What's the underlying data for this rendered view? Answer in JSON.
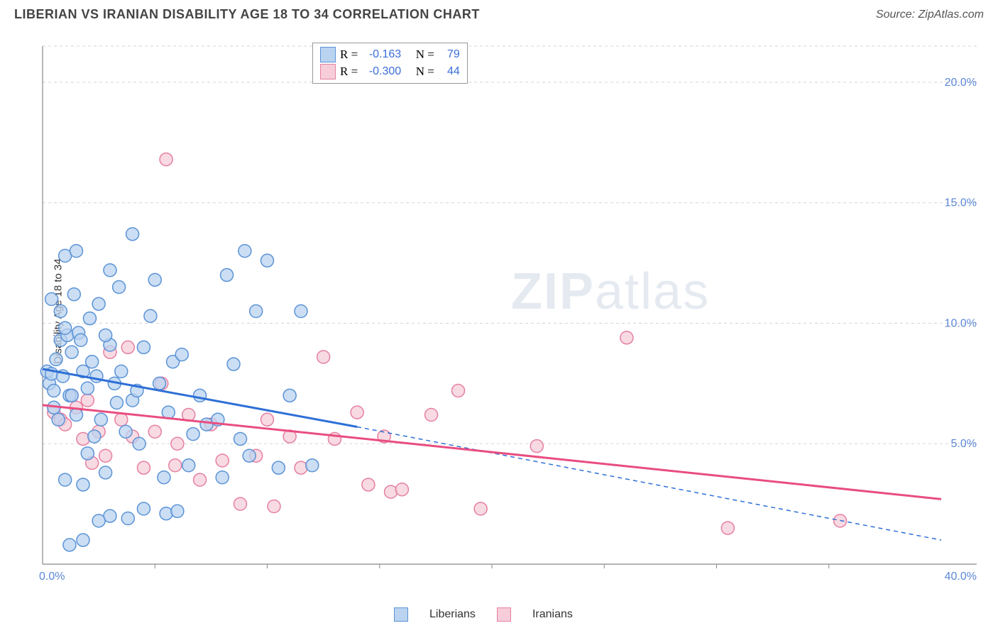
{
  "title": "LIBERIAN VS IRANIAN DISABILITY AGE 18 TO 34 CORRELATION CHART",
  "source": "Source: ZipAtlas.com",
  "ylabel": "Disability Age 18 to 34",
  "watermark_1": "ZIP",
  "watermark_2": "atlas",
  "chart": {
    "type": "scatter",
    "x_min": 0.0,
    "x_max": 40.0,
    "y_min": 0.0,
    "y_max": 21.5,
    "y_ticks": [
      5.0,
      10.0,
      15.0,
      20.0
    ],
    "y_tick_labels": [
      "5.0%",
      "10.0%",
      "15.0%",
      "20.0%"
    ],
    "x_corner_labels": [
      "0.0%",
      "40.0%"
    ],
    "x_minor_ticks": [
      5,
      10,
      15,
      20,
      25,
      30,
      35
    ],
    "grid_color": "#d5d5d5",
    "axis_color": "#888888",
    "tick_label_color": "#5b87d6",
    "tick_label_fontsize": 16,
    "background_color": "#ffffff",
    "marker_radius": 9,
    "marker_stroke_width": 1.5,
    "trend_line_width": 3,
    "trend_dash_width": 1.5,
    "series": [
      {
        "name": "Liberians",
        "fill": "#b9d3f0",
        "stroke": "#5b93d6",
        "line_color": "#2e6fd6",
        "R_label": "R =",
        "R_value": "-0.163",
        "N_label": "N =",
        "N_value": "79",
        "trend": {
          "x1": 0,
          "y1": 8.1,
          "x2": 14,
          "y2": 5.7,
          "dash_x2": 40,
          "dash_y2": 1.0
        },
        "points": [
          [
            0.2,
            8.0
          ],
          [
            0.3,
            7.5
          ],
          [
            0.4,
            7.9
          ],
          [
            0.5,
            7.2
          ],
          [
            0.6,
            8.5
          ],
          [
            0.5,
            6.5
          ],
          [
            0.8,
            9.3
          ],
          [
            0.9,
            7.8
          ],
          [
            1.0,
            12.8
          ],
          [
            1.1,
            9.5
          ],
          [
            1.2,
            7.0
          ],
          [
            1.3,
            8.8
          ],
          [
            1.4,
            11.2
          ],
          [
            1.5,
            6.2
          ],
          [
            1.6,
            9.6
          ],
          [
            1.7,
            9.3
          ],
          [
            1.8,
            3.3
          ],
          [
            1.8,
            1.0
          ],
          [
            2.0,
            7.3
          ],
          [
            2.1,
            10.2
          ],
          [
            2.2,
            8.4
          ],
          [
            2.3,
            5.3
          ],
          [
            2.4,
            7.8
          ],
          [
            2.5,
            10.8
          ],
          [
            2.6,
            6.0
          ],
          [
            2.8,
            3.8
          ],
          [
            3.0,
            9.1
          ],
          [
            3.0,
            2.0
          ],
          [
            3.2,
            7.5
          ],
          [
            3.4,
            11.5
          ],
          [
            3.5,
            8.0
          ],
          [
            3.7,
            5.5
          ],
          [
            4.0,
            13.7
          ],
          [
            4.0,
            6.8
          ],
          [
            4.2,
            7.2
          ],
          [
            4.5,
            9.0
          ],
          [
            4.5,
            2.3
          ],
          [
            4.8,
            10.3
          ],
          [
            5.0,
            11.8
          ],
          [
            5.2,
            7.5
          ],
          [
            5.4,
            3.6
          ],
          [
            5.5,
            2.1
          ],
          [
            5.8,
            8.4
          ],
          [
            6.0,
            2.2
          ],
          [
            6.5,
            4.1
          ],
          [
            7.0,
            7.0
          ],
          [
            7.3,
            5.8
          ],
          [
            8.0,
            3.6
          ],
          [
            8.2,
            12.0
          ],
          [
            8.5,
            8.3
          ],
          [
            9.0,
            13.0
          ],
          [
            9.2,
            4.5
          ],
          [
            9.5,
            10.5
          ],
          [
            10.0,
            12.6
          ],
          [
            10.5,
            4.0
          ],
          [
            11.0,
            7.0
          ],
          [
            11.5,
            10.5
          ],
          [
            12.0,
            4.1
          ],
          [
            2.5,
            1.8
          ],
          [
            3.8,
            1.9
          ],
          [
            1.2,
            0.8
          ],
          [
            6.2,
            8.7
          ],
          [
            3.0,
            12.2
          ],
          [
            1.0,
            3.5
          ],
          [
            2.0,
            4.6
          ],
          [
            0.7,
            6.0
          ],
          [
            1.0,
            9.8
          ],
          [
            1.3,
            7.0
          ],
          [
            1.8,
            8.0
          ],
          [
            2.8,
            9.5
          ],
          [
            3.3,
            6.7
          ],
          [
            4.3,
            5.0
          ],
          [
            5.6,
            6.3
          ],
          [
            6.7,
            5.4
          ],
          [
            7.8,
            6.0
          ],
          [
            8.8,
            5.2
          ],
          [
            0.4,
            11.0
          ],
          [
            0.8,
            10.5
          ],
          [
            1.5,
            13.0
          ]
        ]
      },
      {
        "name": "Iranians",
        "fill": "#f6cdd8",
        "stroke": "#e67fa3",
        "line_color": "#e94d80",
        "R_label": "R =",
        "R_value": "-0.300",
        "N_label": "N =",
        "N_value": "44",
        "trend": {
          "x1": 0,
          "y1": 6.6,
          "x2": 40,
          "y2": 2.7
        },
        "points": [
          [
            0.5,
            6.3
          ],
          [
            0.8,
            6.0
          ],
          [
            1.0,
            5.8
          ],
          [
            1.3,
            7.0
          ],
          [
            1.5,
            6.5
          ],
          [
            1.8,
            5.2
          ],
          [
            2.0,
            6.8
          ],
          [
            2.2,
            4.2
          ],
          [
            2.5,
            5.5
          ],
          [
            2.8,
            4.5
          ],
          [
            3.0,
            8.8
          ],
          [
            3.5,
            6.0
          ],
          [
            3.8,
            9.0
          ],
          [
            4.0,
            5.3
          ],
          [
            4.5,
            4.0
          ],
          [
            5.0,
            5.5
          ],
          [
            5.3,
            7.5
          ],
          [
            5.5,
            16.8
          ],
          [
            6.0,
            5.0
          ],
          [
            6.5,
            6.2
          ],
          [
            7.0,
            3.5
          ],
          [
            7.5,
            5.8
          ],
          [
            8.0,
            4.3
          ],
          [
            8.8,
            2.5
          ],
          [
            9.5,
            4.5
          ],
          [
            10.0,
            6.0
          ],
          [
            10.3,
            2.4
          ],
          [
            11.0,
            5.3
          ],
          [
            11.5,
            4.0
          ],
          [
            12.5,
            8.6
          ],
          [
            13.0,
            5.2
          ],
          [
            14.0,
            6.3
          ],
          [
            14.5,
            3.3
          ],
          [
            15.2,
            5.3
          ],
          [
            15.5,
            3.0
          ],
          [
            16.0,
            3.1
          ],
          [
            17.3,
            6.2
          ],
          [
            18.5,
            7.2
          ],
          [
            19.5,
            2.3
          ],
          [
            22.0,
            4.9
          ],
          [
            26.0,
            9.4
          ],
          [
            30.5,
            1.5
          ],
          [
            35.5,
            1.8
          ],
          [
            5.9,
            4.1
          ]
        ]
      }
    ]
  },
  "legend": {
    "series1_label": "Liberians",
    "series2_label": "Iranians"
  }
}
